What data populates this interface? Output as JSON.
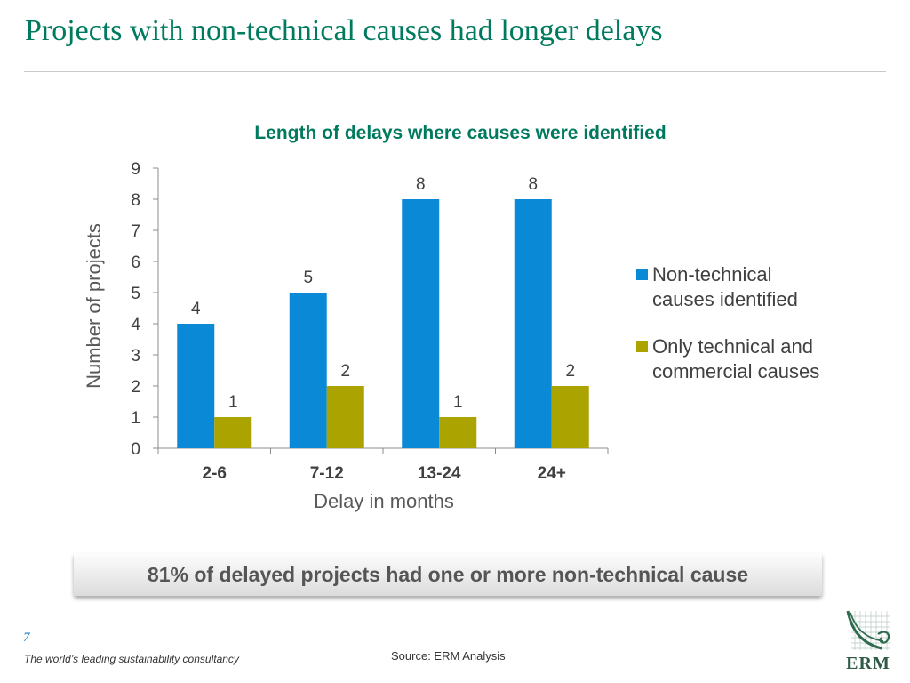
{
  "slide": {
    "title": "Projects with non-technical causes had longer delays",
    "callout": "81% of delayed projects had one or more non-technical cause",
    "page_number": "7",
    "tagline": "The world’s leading sustainability consultancy",
    "source": "Source: ERM Analysis",
    "logo_text": "ERM"
  },
  "colors": {
    "title": "#007a5e",
    "non_technical": "#0a8ad6",
    "technical_commercial": "#aaa300"
  },
  "chart_data": {
    "type": "bar",
    "title": "Length of delays where causes were identified",
    "xlabel": "Delay in months",
    "ylabel": "Number of projects",
    "categories": [
      "2-6",
      "7-12",
      "13-24",
      "24+"
    ],
    "ylim": [
      0,
      9
    ],
    "yticks": [
      0,
      1,
      2,
      3,
      4,
      5,
      6,
      7,
      8,
      9
    ],
    "grid": false,
    "legend_position": "right",
    "series": [
      {
        "name": "Non-technical causes identified",
        "values": [
          4,
          5,
          8,
          8
        ],
        "color": "#0a8ad6"
      },
      {
        "name": "Only technical and commercial causes",
        "values": [
          1,
          2,
          1,
          2
        ],
        "color": "#aaa300"
      }
    ]
  }
}
